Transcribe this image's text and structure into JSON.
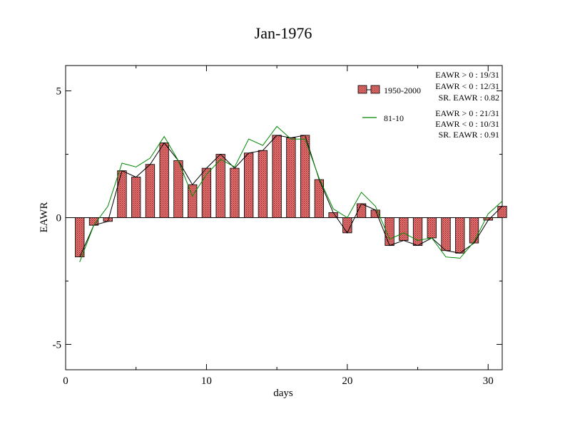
{
  "chart_data": {
    "type": "bar",
    "title": "Jan-1976",
    "xlabel": "days",
    "ylabel": "EAWR",
    "xlim": [
      0,
      31
    ],
    "ylim": [
      -6,
      6
    ],
    "x_ticks": [
      0,
      10,
      20,
      30
    ],
    "y_ticks": [
      5,
      0,
      -5
    ],
    "grid": false,
    "legend_position": "top-right",
    "x": [
      1,
      2,
      3,
      4,
      5,
      6,
      7,
      8,
      9,
      10,
      11,
      12,
      13,
      14,
      15,
      16,
      17,
      18,
      19,
      20,
      21,
      22,
      23,
      24,
      25,
      26,
      27,
      28,
      29,
      30,
      31
    ],
    "series": [
      {
        "name": "1950-2000",
        "kind": "bar",
        "values": [
          -1.55,
          -0.3,
          -0.15,
          1.85,
          1.6,
          2.1,
          2.95,
          2.25,
          1.3,
          1.95,
          2.5,
          1.95,
          2.55,
          2.65,
          3.25,
          3.15,
          3.25,
          1.5,
          0.2,
          -0.6,
          0.55,
          0.3,
          -1.1,
          -0.9,
          -1.1,
          -0.8,
          -1.3,
          -1.4,
          -1.0,
          -0.1,
          0.45
        ]
      },
      {
        "name": "",
        "kind": "line",
        "color": "#000000",
        "values": [
          -1.55,
          -0.3,
          -0.15,
          1.85,
          1.6,
          2.1,
          2.95,
          2.25,
          1.3,
          1.95,
          2.5,
          1.95,
          2.55,
          2.65,
          3.25,
          3.15,
          3.25,
          1.5,
          0.2,
          -0.6,
          0.55,
          0.3,
          -1.1,
          -0.9,
          -1.1,
          -0.8,
          -1.3,
          -1.4,
          -1.0,
          -0.1,
          0.45
        ]
      },
      {
        "name": "81-10",
        "kind": "line",
        "color": "#008800",
        "values": [
          -1.75,
          -0.3,
          0.45,
          2.15,
          2.0,
          2.35,
          3.2,
          2.25,
          0.85,
          1.7,
          2.3,
          2.0,
          3.1,
          2.85,
          3.6,
          3.1,
          3.1,
          1.55,
          0.35,
          0.0,
          1.0,
          0.45,
          -0.85,
          -0.6,
          -0.9,
          -0.8,
          -1.55,
          -1.6,
          -0.95,
          0.15,
          0.65
        ]
      }
    ],
    "annotations": {
      "block1": [
        "EAWR > 0 : 19/31",
        "EAWR < 0 : 12/31",
        "SR. EAWR :  0.82"
      ],
      "block2": [
        "EAWR > 0 : 21/31",
        "EAWR < 0 : 10/31",
        "SR. EAWR :  0.91"
      ]
    },
    "colors": {
      "bar_fill": "#e06060",
      "bar_stroke": "#000000",
      "green_line": "#008800",
      "black_line": "#000000"
    }
  }
}
